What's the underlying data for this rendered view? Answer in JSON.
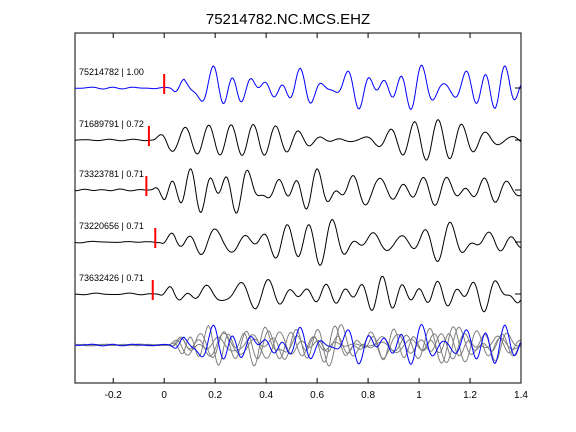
{
  "chart_data": {
    "type": "line",
    "title": "75214782.NC.MCS.EHZ",
    "xlabel": "",
    "ylabel": "",
    "xlim": [
      -0.35,
      1.4
    ],
    "xticks": [
      "-0.2",
      "0",
      "0.2",
      "0.4",
      "0.6",
      "0.8",
      "1",
      "1.2",
      "1.4"
    ],
    "xtick_values": [
      -0.2,
      0,
      0.2,
      0.4,
      0.6,
      0.8,
      1.0,
      1.2,
      1.4
    ],
    "grid": false,
    "traces": [
      {
        "label": "75214782 | 1.00",
        "pick_time": 0.0,
        "color": "#0000ff",
        "seed": 1
      },
      {
        "label": "71689791 | 0.72",
        "pick_time": -0.06,
        "color": "#000000",
        "seed": 2
      },
      {
        "label": "73323781 | 0.71",
        "pick_time": -0.07,
        "color": "#000000",
        "seed": 3
      },
      {
        "label": "73220656 | 0.71",
        "pick_time": -0.035,
        "color": "#000000",
        "seed": 4
      },
      {
        "label": "73632426 | 0.71",
        "pick_time": -0.045,
        "color": "#000000",
        "seed": 5
      }
    ],
    "stack": {
      "master_color": "#0000ff",
      "other_color": "#808080"
    },
    "pick_marker_color": "#ff0000"
  }
}
